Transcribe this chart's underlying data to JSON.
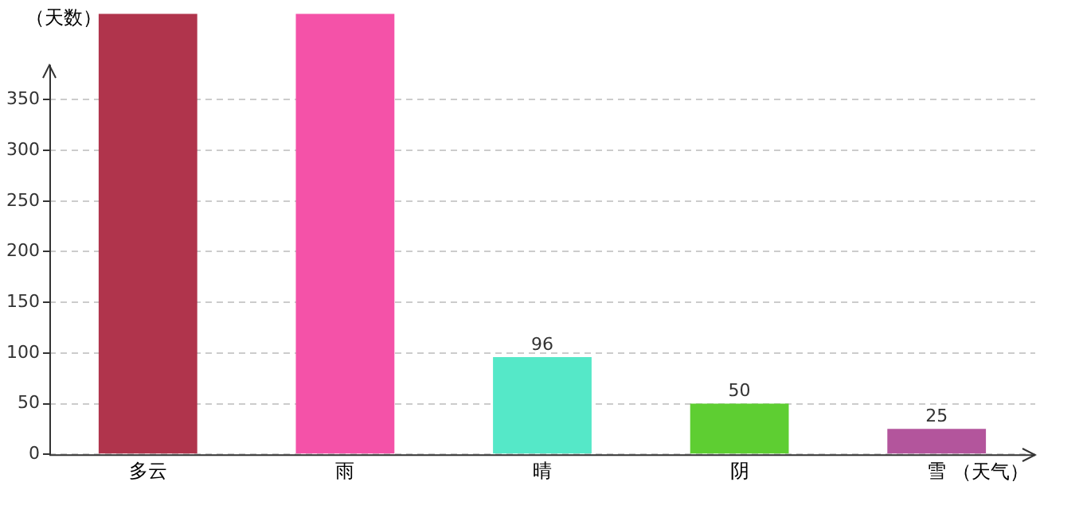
{
  "chart_data": {
    "type": "bar",
    "xlabel": "（天气）",
    "ylabel": "（天数）",
    "categories": [
      "多云",
      "雨",
      "晴",
      "阴",
      "雪"
    ],
    "values": [
      435,
      435,
      96,
      50,
      25
    ],
    "colors": [
      "#b0344c",
      "#f452a8",
      "#55e8c8",
      "#5ece32",
      "#b3559c"
    ],
    "value_labels": [
      null,
      null,
      "96",
      "50",
      "25"
    ],
    "ylim": [
      0,
      435
    ],
    "yticks": [
      0,
      50,
      100,
      150,
      200,
      250,
      300,
      350
    ],
    "grid": "y",
    "legend": false
  }
}
